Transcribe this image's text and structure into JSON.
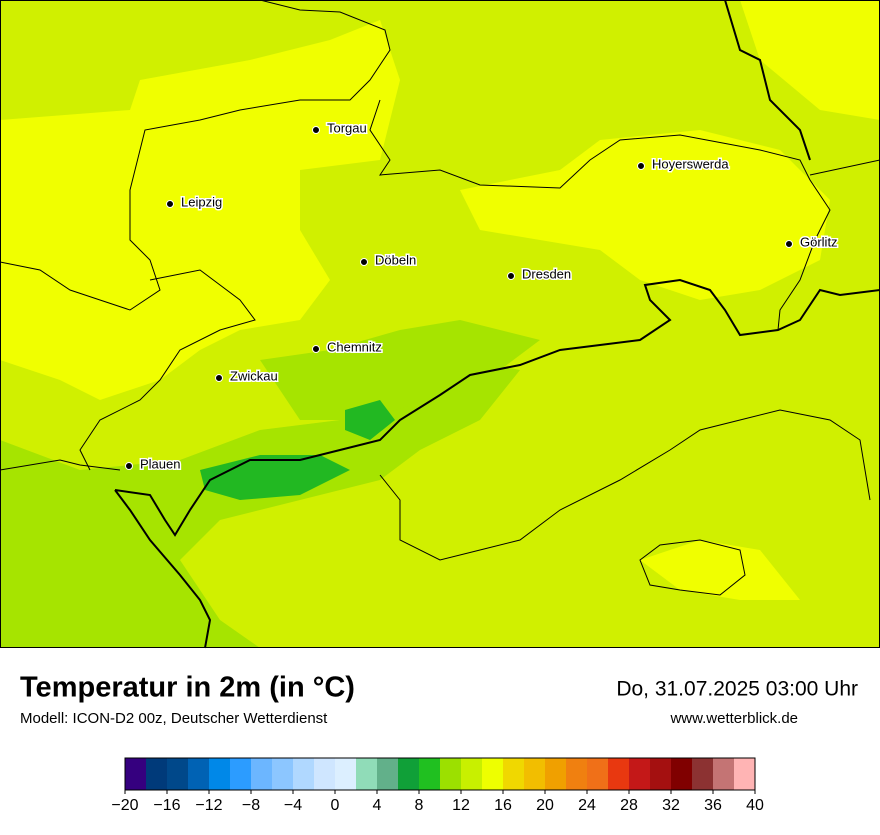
{
  "title": "Temperatur in 2m (in °C)",
  "model": "Modell: ICON-D2 00z, Deutscher Wetterdienst",
  "datetime": "Do, 31.07.2025 03:00 Uhr",
  "website": "www.wetterblick.de",
  "cities": [
    "Torgau",
    "Leipzig",
    "Hoyerswerda",
    "Görlitz",
    "Döbeln",
    "Dresden",
    "Chemnitz",
    "Zwickau",
    "Plauen"
  ],
  "colorbar": {
    "lim": [
      -20,
      40
    ],
    "step": 2,
    "colors": [
      "#35007f",
      "#003a7a",
      "#00488a",
      "#0062b4",
      "#0088e8",
      "#2c9cff",
      "#6cb6ff",
      "#8cc6ff",
      "#b0d8ff",
      "#cfe6ff",
      "#dcefff",
      "#90dcb8",
      "#62b08a",
      "#10a038",
      "#20c020",
      "#9ce000",
      "#c8f000",
      "#eeff00",
      "#f0d800",
      "#f2be00",
      "#f0a000",
      "#f08010",
      "#f07018",
      "#e83810",
      "#c41818",
      "#a41010",
      "#800000",
      "#8c3232",
      "#c47474",
      "#ffb4b4"
    ],
    "ticks": [
      {
        "value": -20,
        "label": "−20"
      },
      {
        "value": -16,
        "label": "−16"
      },
      {
        "value": -12,
        "label": "−12"
      },
      {
        "value": -8,
        "label": "−8"
      },
      {
        "value": -4,
        "label": "−4"
      },
      0,
      4,
      8,
      12,
      16,
      20,
      24,
      28,
      32,
      36,
      40
    ]
  }
}
